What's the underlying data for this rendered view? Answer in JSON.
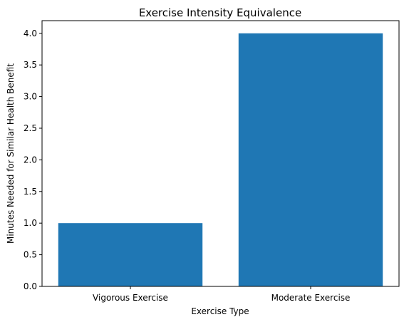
{
  "chart_data": {
    "type": "bar",
    "title": "Exercise Intensity Equivalence",
    "xlabel": "Exercise Type",
    "ylabel": "Minutes Needed for Similar Health Benefit",
    "categories": [
      "Vigorous Exercise",
      "Moderate Exercise"
    ],
    "values": [
      1.0,
      4.0
    ],
    "ylim": [
      0,
      4.2
    ],
    "yticks": [
      0.0,
      0.5,
      1.0,
      1.5,
      2.0,
      2.5,
      3.0,
      3.5,
      4.0
    ],
    "ytick_labels": [
      "0.0",
      "0.5",
      "1.0",
      "1.5",
      "2.0",
      "2.5",
      "3.0",
      "3.5",
      "4.0"
    ],
    "bar_color": "#1f77b4",
    "grid": false,
    "legend": "none"
  }
}
